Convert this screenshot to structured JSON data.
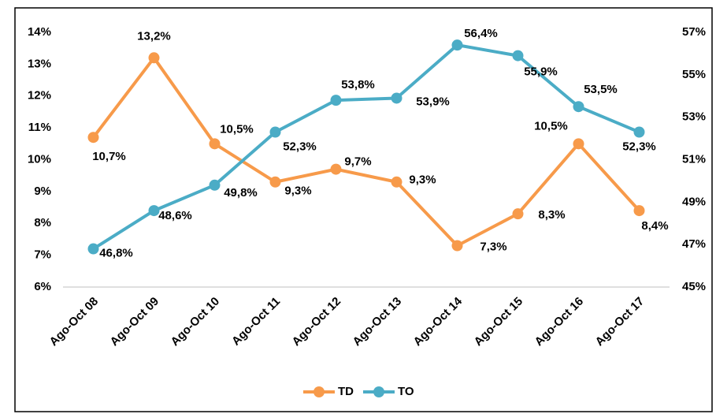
{
  "chart_data": {
    "type": "line",
    "categories": [
      "Ago-Oct 08",
      "Ago-Oct 09",
      "Ago-Oct 10",
      "Ago-Oct 11",
      "Ago-Oct 12",
      "Ago-Oct 13",
      "Ago-Oct 14",
      "Ago-Oct 15",
      "Ago-Oct 16",
      "Ago-Oct 17"
    ],
    "series": [
      {
        "name": "TD",
        "color": "#f79a4a",
        "values": [
          10.7,
          13.2,
          10.5,
          9.3,
          9.7,
          9.3,
          7.3,
          8.3,
          10.5,
          8.4
        ],
        "value_labels": [
          "10,7%",
          "13,2%",
          "10,5%",
          "9,3%",
          "9,7%",
          "9,3%",
          "7,3%",
          "8,3%",
          "10,5%",
          "8,4%"
        ]
      },
      {
        "name": "TO",
        "color": "#4bacc6",
        "axis": "y2",
        "values": [
          46.8,
          48.6,
          49.8,
          52.3,
          53.8,
          53.9,
          56.4,
          55.9,
          53.5,
          52.3
        ],
        "value_labels": [
          "46,8%",
          "48,6%",
          "49,8%",
          "52,3%",
          "53,8%",
          "53,9%",
          "56,4%",
          "55,9%",
          "53,5%",
          "52,3%"
        ]
      }
    ],
    "ylim": [
      6,
      14
    ],
    "yticks": [
      {
        "value": 6,
        "label": "6%"
      },
      {
        "value": 7,
        "label": "7%"
      },
      {
        "value": 8,
        "label": "8%"
      },
      {
        "value": 9,
        "label": "9%"
      },
      {
        "value": 10,
        "label": "10%"
      },
      {
        "value": 11,
        "label": "11%"
      },
      {
        "value": 12,
        "label": "12%"
      },
      {
        "value": 13,
        "label": "13%"
      },
      {
        "value": 14,
        "label": "14%"
      }
    ],
    "y2lim": [
      45,
      57
    ],
    "y2ticks": [
      {
        "value": 45,
        "label": "45%"
      },
      {
        "value": 47,
        "label": "47%"
      },
      {
        "value": 49,
        "label": "49%"
      },
      {
        "value": 51,
        "label": "51%"
      },
      {
        "value": 53,
        "label": "53%"
      },
      {
        "value": 55,
        "label": "55%"
      },
      {
        "value": 57,
        "label": "57%"
      }
    ],
    "grid": false,
    "legend": "bottom"
  }
}
